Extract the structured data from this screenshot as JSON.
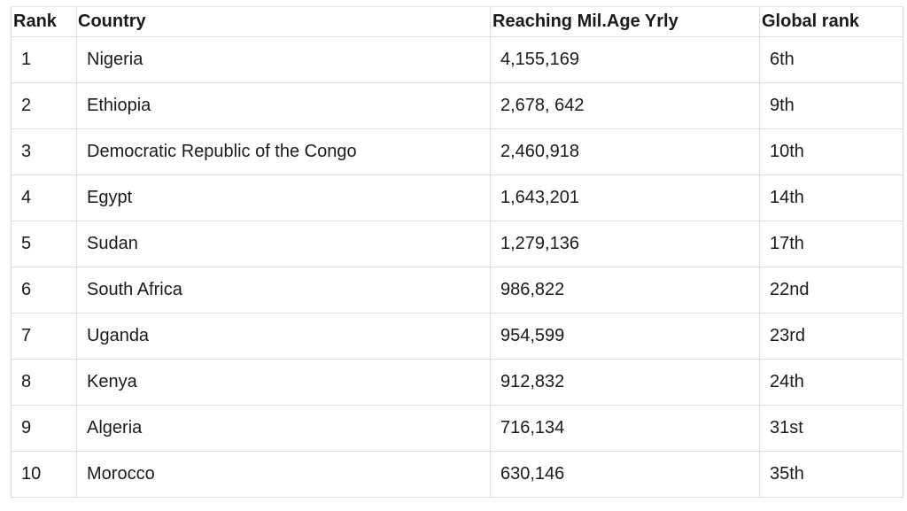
{
  "table": {
    "headers": [
      "Rank",
      "Country",
      "Reaching Mil.Age Yrly",
      "Global rank"
    ],
    "rows": [
      [
        "1",
        "Nigeria",
        "4,155,169",
        "6th"
      ],
      [
        "2",
        "Ethiopia",
        "2,678, 642",
        "9th"
      ],
      [
        "3",
        "Democratic Republic of the Congo",
        "2,460,918",
        "10th"
      ],
      [
        "4",
        "Egypt",
        "1,643,201",
        "14th"
      ],
      [
        "5",
        "Sudan",
        "1,279,136",
        "17th"
      ],
      [
        "6",
        "South Africa",
        "986,822",
        "22nd"
      ],
      [
        "7",
        "Uganda",
        "954,599",
        "23rd"
      ],
      [
        "8",
        "Kenya",
        "912,832",
        "24th"
      ],
      [
        "9",
        "Algeria",
        "716,134",
        "31st"
      ],
      [
        "10",
        "Morocco",
        "630,146",
        "35th"
      ]
    ]
  }
}
